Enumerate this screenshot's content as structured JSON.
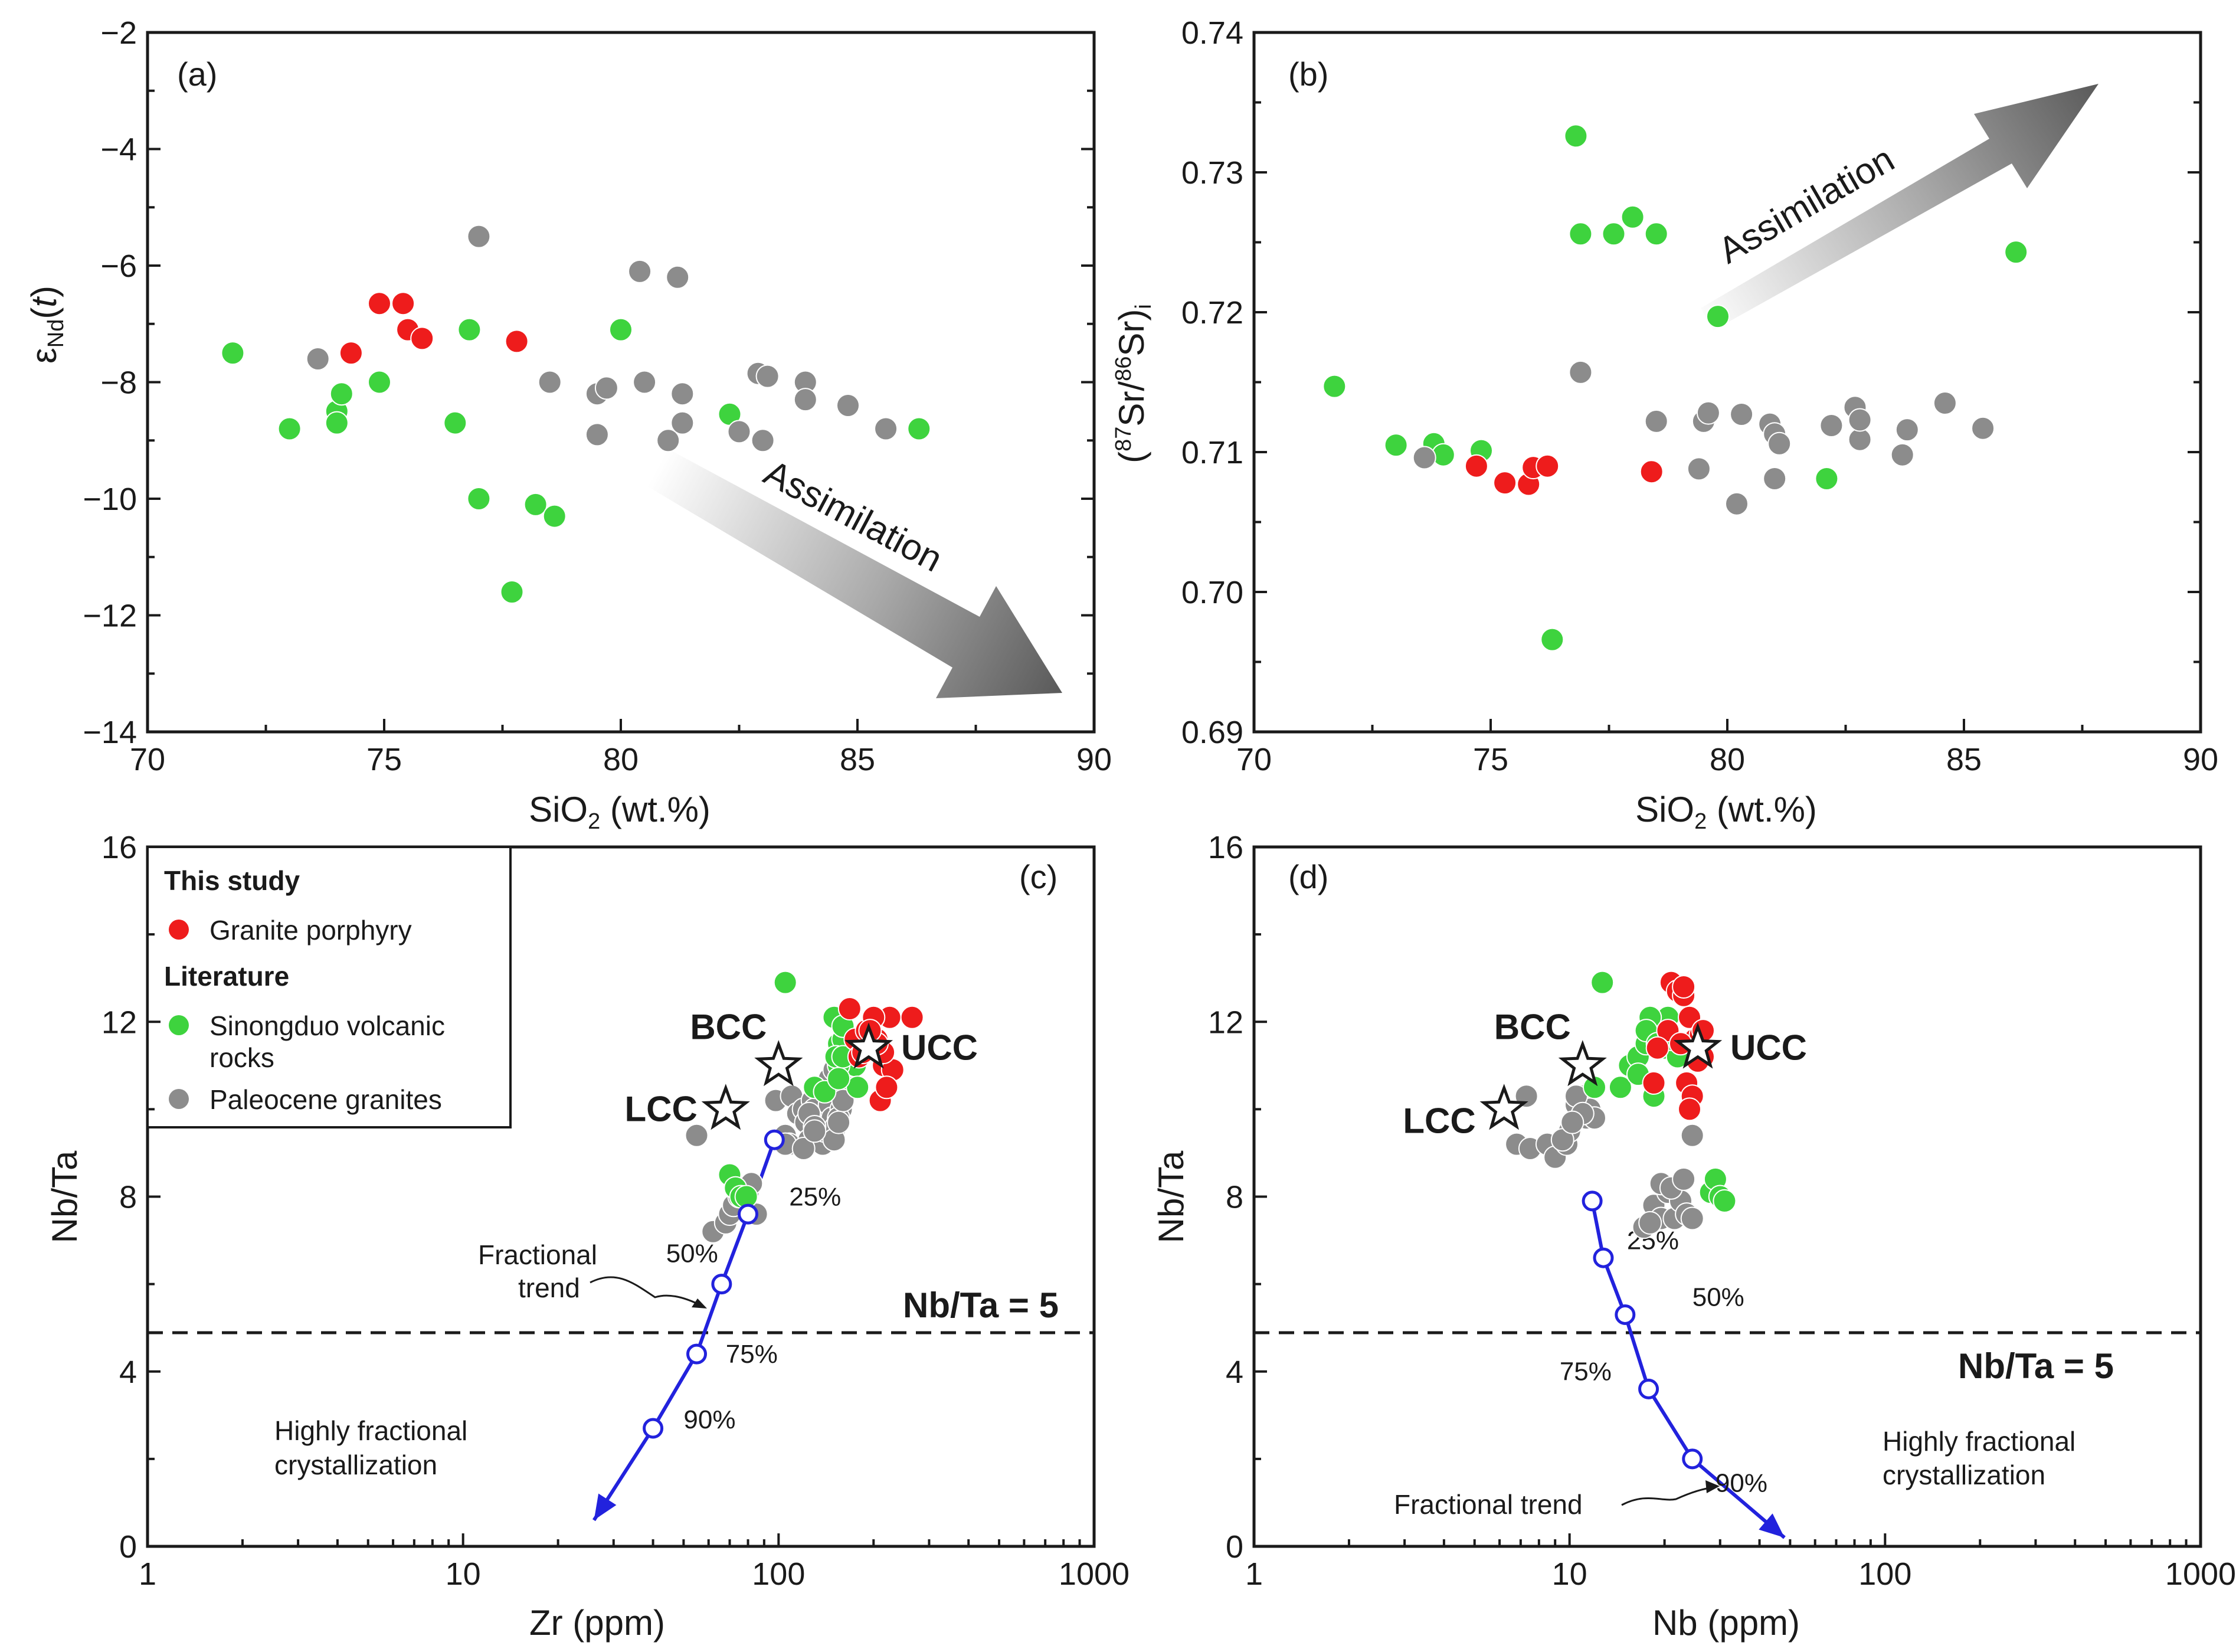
{
  "colors": {
    "red": "#ee1c1c",
    "green": "#3ed33e",
    "gray": "#8c8c8c",
    "blue": "#2222dd",
    "arrow_dark": "#5e5e5e"
  },
  "legend": {
    "header_this_study": "This study",
    "granite_porphyry": "Granite porphyry",
    "header_literature": "Literature",
    "sinongduo_line1": "Sinongduo volcanic",
    "sinongduo_line2": "rocks",
    "paleocene": "Paleocene granites"
  },
  "chart_data": [
    {
      "panel": "(a)",
      "type": "scatter",
      "xlabel": "SiO2 (wt.%)",
      "ylabel": "εNd(t)",
      "xlim": [
        70,
        90
      ],
      "ylim": [
        -14,
        -2
      ],
      "xticks": [
        "70",
        "75",
        "80",
        "85",
        "90"
      ],
      "yticks": [
        "−14",
        "−12",
        "−10",
        "−8",
        "−6",
        "−4",
        "−2"
      ],
      "annotation": "Assimilation",
      "series": [
        {
          "name": "Granite porphyry",
          "color": "red",
          "x": [
            74.3,
            74.9,
            75.4,
            75.5,
            75.8,
            77.8
          ],
          "y": [
            -7.5,
            -6.65,
            -6.65,
            -7.1,
            -7.25,
            -7.3
          ]
        },
        {
          "name": "Sinongduo volcanic rocks",
          "color": "green",
          "x": [
            71.8,
            73.0,
            74.0,
            74.1,
            74.0,
            74.9,
            76.5,
            76.8,
            77.0,
            77.7,
            78.2,
            78.6,
            80.0,
            82.3,
            86.3
          ],
          "y": [
            -7.5,
            -8.8,
            -8.5,
            -8.2,
            -8.7,
            -8.0,
            -8.7,
            -7.1,
            -10.0,
            -11.6,
            -10.1,
            -10.3,
            -7.1,
            -8.55,
            -8.8
          ]
        },
        {
          "name": "Paleocene granites",
          "color": "gray",
          "x": [
            73.6,
            77.0,
            78.5,
            79.5,
            79.7,
            79.5,
            80.4,
            80.5,
            81.0,
            81.2,
            81.3,
            81.3,
            82.5,
            82.9,
            83.0,
            83.1,
            83.9,
            83.9,
            84.8,
            85.6
          ],
          "y": [
            -7.6,
            -5.5,
            -8.0,
            -8.2,
            -8.1,
            -8.9,
            -6.1,
            -8.0,
            -9.0,
            -6.2,
            -8.2,
            -8.7,
            -8.85,
            -7.85,
            -9.0,
            -7.9,
            -8.0,
            -8.3,
            -8.4,
            -8.8
          ]
        }
      ]
    },
    {
      "panel": "(b)",
      "type": "scatter",
      "xlabel": "SiO2 (wt.%)",
      "ylabel": "(87Sr/86Sr)i",
      "xlim": [
        70,
        90
      ],
      "ylim": [
        0.69,
        0.74
      ],
      "xticks": [
        "70",
        "75",
        "80",
        "85",
        "90"
      ],
      "yticks": [
        "0.69",
        "0.70",
        "0.71",
        "0.72",
        "0.73",
        "0.74"
      ],
      "annotation": "Assimilation",
      "series": [
        {
          "name": "Granite porphyry",
          "color": "red",
          "x": [
            74.7,
            75.3,
            75.8,
            75.9,
            76.2,
            78.4
          ],
          "y": [
            0.709,
            0.7078,
            0.7077,
            0.7089,
            0.709,
            0.7086
          ]
        },
        {
          "name": "Sinongduo volcanic rocks",
          "color": "green",
          "x": [
            71.7,
            73.0,
            73.8,
            74.0,
            74.8,
            76.3,
            76.8,
            76.9,
            77.6,
            78.0,
            78.5,
            79.8,
            82.1,
            86.1
          ],
          "y": [
            0.7147,
            0.7105,
            0.7106,
            0.7098,
            0.7101,
            0.6966,
            0.7326,
            0.7256,
            0.7256,
            0.7268,
            0.7256,
            0.7197,
            0.7081,
            0.7243
          ]
        },
        {
          "name": "Paleocene granites",
          "color": "gray",
          "x": [
            73.6,
            76.9,
            78.5,
            79.4,
            79.5,
            79.6,
            80.2,
            80.3,
            80.9,
            81.0,
            81.0,
            81.1,
            82.2,
            82.7,
            82.8,
            82.8,
            83.7,
            83.8,
            84.6,
            85.4
          ],
          "y": [
            0.7096,
            0.7157,
            0.7122,
            0.7088,
            0.7122,
            0.7128,
            0.7063,
            0.7127,
            0.712,
            0.7081,
            0.7113,
            0.7106,
            0.7119,
            0.7132,
            0.7109,
            0.7123,
            0.7098,
            0.7116,
            0.7135,
            0.7117
          ]
        }
      ]
    },
    {
      "panel": "(c)",
      "type": "scatter",
      "xlabel": "Zr (ppm)",
      "ylabel": "Nb/Ta",
      "xscale": "log",
      "xlim": [
        1,
        1000
      ],
      "ylim": [
        0,
        16
      ],
      "xticks": [
        "1",
        "10",
        "100",
        "1000"
      ],
      "yticks": [
        "0",
        "4",
        "8",
        "12",
        "16"
      ],
      "reference_line": {
        "y": 5,
        "label": "Nb/Ta = 5"
      },
      "region_label_1": "Highly fractional",
      "region_label_2": "crystallization",
      "trend_label_1": "Fractional",
      "trend_label_2": "trend",
      "crust": [
        {
          "label": "LCC",
          "x": 68,
          "y": 10.0
        },
        {
          "label": "BCC",
          "x": 100,
          "y": 11.0
        },
        {
          "label": "UCC",
          "x": 193,
          "y": 11.4
        }
      ],
      "trend": {
        "x": [
          97,
          80,
          66,
          55,
          40
        ],
        "y": [
          9.3,
          7.6,
          6.0,
          4.4,
          2.7
        ]
      },
      "trend_end": {
        "x": 26,
        "y": 0.6
      },
      "trend_pct_labels": [
        {
          "label": "25%",
          "x": 108,
          "y": 7.8
        },
        {
          "label": "50%",
          "x": 44,
          "y": 6.5
        },
        {
          "label": "75%",
          "x": 68,
          "y": 4.2
        },
        {
          "label": "90%",
          "x": 50,
          "y": 2.7
        }
      ],
      "series": [
        {
          "name": "Granite porphyry",
          "color": "red",
          "x": [
            168,
            175,
            180,
            190,
            205,
            215,
            225,
            230,
            265,
            210,
            220,
            215,
            205,
            200,
            195,
            185
          ],
          "y": [
            12.3,
            11.6,
            11.2,
            11.8,
            11.6,
            11.0,
            12.1,
            10.9,
            12.1,
            10.2,
            10.5,
            11.3,
            11.5,
            12.1,
            11.8,
            11.3
          ]
        },
        {
          "name": "Sinongduo volcanic rocks",
          "color": "green",
          "x": [
            105,
            130,
            140,
            150,
            155,
            160,
            165,
            170,
            175,
            178,
            180,
            160,
            155,
            152,
            70,
            73,
            76,
            79,
            155,
            160
          ],
          "y": [
            12.9,
            10.5,
            10.4,
            12.1,
            11.5,
            11.6,
            11.2,
            11.0,
            11.0,
            10.5,
            11.4,
            11.9,
            11.0,
            11.2,
            8.5,
            8.2,
            8.0,
            8.0,
            10.7,
            11.2
          ]
        },
        {
          "name": "Paleocene granites",
          "color": "gray",
          "x": [
            55,
            62,
            68,
            70,
            72,
            75,
            80,
            82,
            85,
            98,
            105,
            108,
            110,
            115,
            120,
            122,
            125,
            128,
            130,
            132,
            135,
            138,
            140,
            142,
            145,
            148,
            150,
            152,
            155,
            158,
            160,
            125,
            130,
            140,
            150,
            155,
            160,
            105,
            120,
            130,
            145,
            150,
            155
          ],
          "y": [
            9.4,
            7.2,
            7.4,
            7.6,
            7.8,
            8.0,
            8.1,
            8.3,
            7.6,
            10.2,
            9.4,
            9.2,
            10.3,
            9.9,
            10.0,
            9.7,
            9.3,
            10.2,
            10.0,
            9.8,
            9.6,
            9.2,
            9.5,
            9.9,
            10.1,
            9.8,
            9.5,
            9.6,
            10.4,
            10.0,
            10.8,
            9.9,
            9.6,
            10.5,
            9.3,
            9.8,
            10.2,
            9.2,
            9.1,
            9.5,
            10.7,
            10.9,
            9.7
          ]
        }
      ]
    },
    {
      "panel": "(d)",
      "type": "scatter",
      "xlabel": "Nb (ppm)",
      "ylabel": "Nb/Ta",
      "xscale": "log",
      "xlim": [
        1,
        1000
      ],
      "ylim": [
        0,
        16
      ],
      "xticks": [
        "1",
        "10",
        "100",
        "1000"
      ],
      "yticks": [
        "0",
        "4",
        "8",
        "12",
        "16"
      ],
      "reference_line": {
        "y": 5,
        "label": "Nb/Ta = 5"
      },
      "region_label_1": "Highly fractional",
      "region_label_2": "crystallization",
      "trend_label": "Fractional trend",
      "crust": [
        {
          "label": "LCC",
          "x": 6.2,
          "y": 10.0
        },
        {
          "label": "BCC",
          "x": 11.0,
          "y": 11.0
        },
        {
          "label": "UCC",
          "x": 25.5,
          "y": 11.4
        }
      ],
      "trend": {
        "x": [
          11.8,
          12.8,
          15,
          17.8,
          24.5
        ],
        "y": [
          7.9,
          6.6,
          5.3,
          3.6,
          2.0
        ]
      },
      "trend_end": {
        "x": 48,
        "y": 0.2
      },
      "trend_pct_labels": [
        {
          "label": "25%",
          "x": 15.2,
          "y": 6.8
        },
        {
          "label": "50%",
          "x": 24.5,
          "y": 5.5
        },
        {
          "label": "75%",
          "x": 9.3,
          "y": 3.8
        },
        {
          "label": "90%",
          "x": 29,
          "y": 1.25
        }
      ],
      "series": [
        {
          "name": "Granite porphyry",
          "color": "red",
          "x": [
            21,
            22,
            23,
            24,
            25,
            26,
            26.5,
            20.5,
            22.5,
            23.5,
            24.5,
            25.5,
            19,
            18.5,
            23,
            24,
            26.5
          ],
          "y": [
            12.9,
            12.7,
            12.6,
            12.1,
            11.6,
            11.7,
            11.2,
            11.8,
            11.5,
            10.6,
            10.3,
            11.1,
            11.4,
            10.6,
            12.8,
            10.0,
            11.8
          ]
        },
        {
          "name": "Sinongduo volcanic rocks",
          "color": "green",
          "x": [
            12.7,
            12,
            14.5,
            15.5,
            16.5,
            17.5,
            18.5,
            20,
            20.5,
            21.5,
            22,
            18,
            17.5,
            16.5,
            28,
            29,
            30,
            31,
            19,
            21
          ],
          "y": [
            12.9,
            10.5,
            10.5,
            11.0,
            11.2,
            11.5,
            10.3,
            11.4,
            12.1,
            11.5,
            11.2,
            12.1,
            11.8,
            10.8,
            8.1,
            8.4,
            8.0,
            7.9,
            11.5,
            11.6
          ]
        },
        {
          "name": "Paleocene granites",
          "color": "gray",
          "x": [
            7.3,
            6.8,
            7.5,
            8.5,
            9.0,
            9.8,
            10.0,
            10.3,
            10.5,
            10.8,
            11.0,
            11.3,
            11.6,
            12.0,
            10.5,
            10.0,
            9.5,
            11.0,
            10.2,
            17.2,
            18.5,
            19.5,
            20.5,
            21.5,
            22.5,
            23.5,
            24.5,
            19.5,
            21.0,
            23.0,
            18.0,
            24.5
          ],
          "y": [
            10.3,
            9.2,
            9.1,
            9.2,
            8.9,
            9.2,
            9.5,
            9.7,
            10.1,
            9.8,
            10.3,
            9.8,
            10.0,
            9.8,
            10.3,
            9.5,
            9.3,
            9.9,
            9.7,
            7.3,
            7.8,
            7.5,
            8.1,
            7.5,
            7.9,
            7.6,
            9.4,
            8.3,
            8.2,
            8.4,
            7.4,
            7.5
          ]
        }
      ]
    }
  ]
}
